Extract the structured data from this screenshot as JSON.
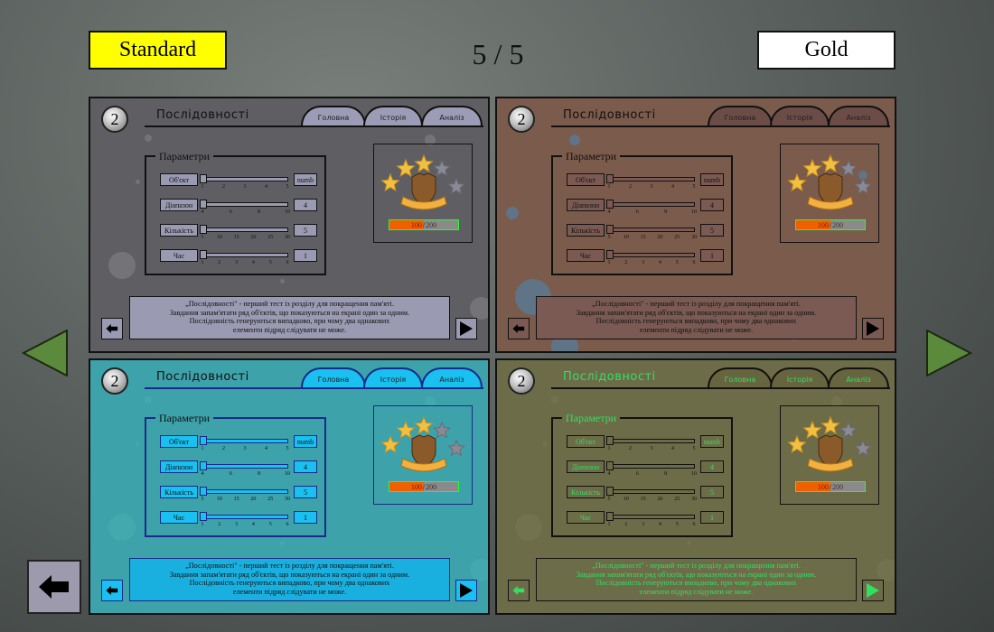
{
  "header": {
    "standard_label": "Standard",
    "counter": "5 / 5",
    "gold_label": "Gold"
  },
  "colors": {
    "standard_bg": "#ffff00",
    "gold_bg": "#ffffff",
    "nav_arrow": "#5c8a3c",
    "back_button": "#9c9aac"
  },
  "panel": {
    "badge_number": "2",
    "title": "Послідовності",
    "tabs": [
      {
        "label": "Головна"
      },
      {
        "label": "Історія"
      },
      {
        "label": "Аналіз"
      }
    ],
    "params_title": "Параметри",
    "params": [
      {
        "label": "Об'єкт",
        "value": "numb",
        "ticks": [
          "1",
          "2",
          "3",
          "4",
          "5"
        ]
      },
      {
        "label": "Діапазон",
        "value": "4",
        "ticks": [
          "4",
          "6",
          "8",
          "10"
        ]
      },
      {
        "label": "Кількість",
        "value": "5",
        "ticks": [
          "5",
          "10",
          "15",
          "20",
          "25",
          "30"
        ]
      },
      {
        "label": "Час",
        "value": "1",
        "ticks": [
          "1",
          "2",
          "3",
          "4",
          "5",
          "6"
        ]
      }
    ],
    "stars_filled": 3,
    "stars_total": 5,
    "progress": {
      "current": "100",
      "separator": "/",
      "max": "200",
      "fraction": 0.5
    },
    "description": [
      "„Послідовності\" - перший тест із розділу для покращення пам'яті.",
      "Завдання запам'ятати ряд об'єктів, що показуються на екрані один за одним.",
      "Послідовність генеруються випадково, при чому два однакових",
      "елементи підряд слідувати не може."
    ]
  },
  "themes": [
    {
      "name": "grey",
      "bg": "#5f5f63",
      "box": "#9a9ab2",
      "tab": "#9c9cb6",
      "text": "#111111",
      "line": "#111111",
      "splat": "#8a8a8e"
    },
    {
      "name": "brown",
      "bg": "#7b5b4b",
      "box": "#7a5a52",
      "tab": "#6b4c46",
      "text": "#111111",
      "line": "#111111",
      "splat": "#5a7a96"
    },
    {
      "name": "teal",
      "bg": "#3ea2aa",
      "box": "#19c0f0",
      "tab": "#19c0f0",
      "text": "#111111",
      "line": "#1a2a8a",
      "splat": "#4ab0b4"
    },
    {
      "name": "olive",
      "bg": "#6d6c49",
      "box": "#6d6c49",
      "tab": "#66653f",
      "text": "#30e060",
      "line": "#111111",
      "splat": "#7a7856"
    }
  ]
}
